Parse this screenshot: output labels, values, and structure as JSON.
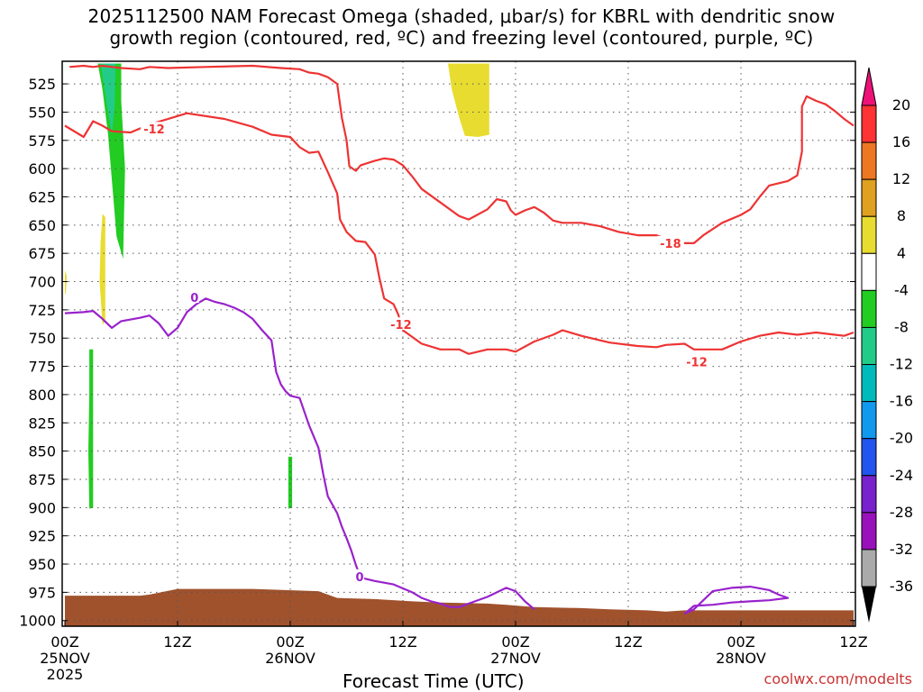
{
  "title": {
    "line1": "2025112500 NAM Forecast Omega (shaded, μbar/s) for KBRL with dendritic snow",
    "line2": "growth region (contoured, red, ºC) and freezing level (contoured, purple, ºC)"
  },
  "xaxis_title": "Forecast Time (UTC)",
  "credit": "coolwx.com/modelts",
  "chart_data": {
    "type": "area",
    "y_axis": {
      "label": "",
      "ticks": [
        525,
        550,
        575,
        600,
        625,
        650,
        675,
        700,
        725,
        750,
        775,
        800,
        825,
        850,
        875,
        900,
        925,
        950,
        975,
        1000
      ],
      "range": [
        1005,
        505
      ],
      "units": "hPa"
    },
    "x_axis": {
      "range_hours": [
        0,
        84
      ],
      "ticks": [
        {
          "hour": 0,
          "top": "00Z",
          "bottom": "25NOV",
          "bottom2": "2025"
        },
        {
          "hour": 12,
          "top": "12Z",
          "bottom": "",
          "bottom2": ""
        },
        {
          "hour": 24,
          "top": "00Z",
          "bottom": "26NOV",
          "bottom2": ""
        },
        {
          "hour": 36,
          "top": "12Z",
          "bottom": "",
          "bottom2": ""
        },
        {
          "hour": 48,
          "top": "00Z",
          "bottom": "27NOV",
          "bottom2": ""
        },
        {
          "hour": 60,
          "top": "12Z",
          "bottom": "",
          "bottom2": ""
        },
        {
          "hour": 72,
          "top": "00Z",
          "bottom": "28NOV",
          "bottom2": ""
        },
        {
          "hour": 84,
          "top": "12Z",
          "bottom": "",
          "bottom2": ""
        }
      ]
    },
    "colorbar": {
      "labels": [
        "20",
        "16",
        "12",
        "8",
        "4",
        "-4",
        "-8",
        "-12",
        "-16",
        "-20",
        "-24",
        "-28",
        "-32",
        "-36"
      ],
      "colors": [
        "#ff3333",
        "#ee7722",
        "#e0a020",
        "#e8dc30",
        "#ffffff",
        "#22cc22",
        "#22cc88",
        "#00bbbb",
        "#1199ee",
        "#2255ee",
        "#7722cc",
        "#9911bb",
        "#aaaaaa"
      ],
      "top_arrow_color": "#ee1177",
      "bottom_arrow_color": "#000000"
    },
    "contour_labels": [
      {
        "text": "-12",
        "x": 9.5,
        "y": 565,
        "color": "#ee3333"
      },
      {
        "text": "-18",
        "x": 64.5,
        "y": 666,
        "color": "#ee3333"
      },
      {
        "text": "-12",
        "x": 35.8,
        "y": 738,
        "color": "#ee3333"
      },
      {
        "text": "-12",
        "x": 67.3,
        "y": 771,
        "color": "#ee3333"
      },
      {
        "text": "0",
        "x": 13.8,
        "y": 714,
        "color": "#9922cc"
      },
      {
        "text": "0",
        "x": 31.4,
        "y": 961,
        "color": "#9922cc"
      }
    ],
    "series": [
      {
        "kind": "contour",
        "color": "#ee3333",
        "points": [
          [
            0,
            562
          ],
          [
            2,
            572
          ],
          [
            3,
            558
          ],
          [
            4,
            562
          ],
          [
            5,
            567
          ],
          [
            7,
            568
          ],
          [
            9,
            561
          ],
          [
            13,
            551
          ],
          [
            17,
            556
          ],
          [
            20,
            563
          ],
          [
            22,
            570
          ],
          [
            24,
            572
          ],
          [
            25,
            581
          ],
          [
            26,
            586
          ],
          [
            27,
            585
          ],
          [
            28,
            603
          ],
          [
            29,
            622
          ],
          [
            29.3,
            645
          ],
          [
            30,
            656
          ],
          [
            31,
            664
          ],
          [
            32,
            665
          ],
          [
            33,
            676
          ],
          [
            33.5,
            697
          ],
          [
            34,
            715
          ],
          [
            35,
            720
          ],
          [
            35.5,
            729
          ],
          [
            36,
            743
          ],
          [
            38,
            755
          ],
          [
            40,
            760
          ],
          [
            42,
            760
          ],
          [
            43,
            764
          ],
          [
            44,
            762
          ],
          [
            45,
            760
          ],
          [
            47,
            760
          ],
          [
            48,
            762
          ],
          [
            50,
            753
          ],
          [
            52,
            747
          ],
          [
            53,
            743
          ],
          [
            55,
            748
          ],
          [
            56,
            750
          ],
          [
            58,
            754
          ],
          [
            61,
            757
          ],
          [
            63,
            758
          ],
          [
            64,
            756
          ],
          [
            66,
            755
          ],
          [
            67,
            760
          ],
          [
            70,
            760
          ],
          [
            72,
            753
          ],
          [
            74,
            748
          ],
          [
            76,
            745
          ],
          [
            78,
            747
          ],
          [
            80,
            745
          ],
          [
            82,
            747
          ],
          [
            83,
            748
          ],
          [
            84,
            745
          ]
        ]
      },
      {
        "kind": "contour",
        "color": "#ee3333",
        "points": [
          [
            0.5,
            510
          ],
          [
            2,
            509
          ],
          [
            3,
            510
          ],
          [
            4,
            509
          ],
          [
            6,
            511
          ],
          [
            8,
            512
          ],
          [
            9,
            510
          ],
          [
            11,
            511
          ],
          [
            15,
            510
          ],
          [
            20,
            509
          ],
          [
            23,
            511
          ],
          [
            25,
            512
          ],
          [
            26,
            515
          ],
          [
            27,
            516
          ],
          [
            28,
            519
          ],
          [
            29,
            525
          ],
          [
            29.5,
            555
          ],
          [
            30,
            575
          ],
          [
            30.3,
            598
          ],
          [
            31,
            602
          ],
          [
            31.5,
            597
          ],
          [
            33,
            593
          ],
          [
            34,
            591
          ],
          [
            35,
            592
          ],
          [
            36,
            597
          ],
          [
            37,
            607
          ],
          [
            38,
            618
          ],
          [
            40,
            630
          ],
          [
            42,
            642
          ],
          [
            43,
            645
          ],
          [
            45,
            636
          ],
          [
            46,
            627
          ],
          [
            47,
            629
          ],
          [
            47.5,
            637
          ],
          [
            48,
            641
          ],
          [
            49,
            637
          ],
          [
            50,
            634
          ],
          [
            51,
            639
          ],
          [
            52,
            646
          ],
          [
            53,
            648
          ],
          [
            55,
            648
          ],
          [
            57,
            651
          ],
          [
            59,
            656
          ],
          [
            61,
            659
          ],
          [
            63,
            659
          ],
          [
            64,
            662
          ],
          [
            66,
            666
          ],
          [
            67,
            666
          ],
          [
            68,
            659
          ],
          [
            70,
            648
          ],
          [
            72,
            641
          ],
          [
            73,
            636
          ],
          [
            74,
            625
          ],
          [
            75,
            615
          ],
          [
            76,
            613
          ],
          [
            77,
            611
          ],
          [
            78,
            606
          ],
          [
            78.5,
            585
          ],
          [
            78.5,
            545
          ],
          [
            79,
            536
          ],
          [
            80,
            540
          ],
          [
            81,
            543
          ],
          [
            82,
            549
          ],
          [
            83,
            556
          ],
          [
            84,
            562
          ]
        ]
      },
      {
        "kind": "contour",
        "color": "#9922cc",
        "points": [
          [
            0,
            728
          ],
          [
            2,
            727
          ],
          [
            3,
            726
          ],
          [
            4,
            733
          ],
          [
            5,
            741
          ],
          [
            6,
            735
          ],
          [
            8,
            732
          ],
          [
            9,
            730
          ],
          [
            10,
            737
          ],
          [
            11,
            748
          ],
          [
            12,
            741
          ],
          [
            13,
            727
          ],
          [
            14,
            720
          ],
          [
            15,
            715
          ],
          [
            16,
            718
          ],
          [
            17,
            720
          ],
          [
            18,
            723
          ],
          [
            19,
            727
          ],
          [
            20,
            733
          ],
          [
            21,
            743
          ],
          [
            22,
            752
          ],
          [
            22.5,
            780
          ],
          [
            23,
            791
          ],
          [
            23.5,
            797
          ],
          [
            24,
            801
          ],
          [
            25,
            803
          ],
          [
            26,
            827
          ],
          [
            27,
            847
          ],
          [
            27.5,
            870
          ],
          [
            28,
            890
          ],
          [
            29,
            905
          ],
          [
            29.5,
            917
          ],
          [
            30,
            927
          ],
          [
            30.5,
            938
          ],
          [
            31,
            951
          ],
          [
            31.5,
            962
          ],
          [
            33,
            965
          ],
          [
            35,
            968
          ],
          [
            37,
            975
          ],
          [
            38,
            980
          ],
          [
            39,
            983
          ],
          [
            40,
            985
          ],
          [
            41,
            988
          ],
          [
            42,
            988
          ],
          [
            43,
            985
          ],
          [
            45,
            979
          ],
          [
            47,
            971
          ],
          [
            48,
            974
          ],
          [
            49,
            983
          ],
          [
            50,
            990
          ]
        ]
      },
      {
        "kind": "contour",
        "color": "#9922cc",
        "points": [
          [
            66,
            994
          ],
          [
            67,
            990
          ],
          [
            68,
            982
          ],
          [
            69,
            974
          ],
          [
            71,
            971
          ],
          [
            73,
            970
          ],
          [
            75,
            973
          ],
          [
            76,
            977
          ],
          [
            77,
            980
          ],
          [
            75,
            982
          ],
          [
            73,
            983
          ],
          [
            71,
            984
          ],
          [
            69,
            986
          ],
          [
            67,
            987
          ],
          [
            66,
            994
          ]
        ]
      },
      {
        "kind": "shaded",
        "value_range": "-8 to -4",
        "color": "#22cc22",
        "points": [
          [
            3.5,
            507
          ],
          [
            6,
            507
          ],
          [
            6,
            540
          ],
          [
            6.4,
            600
          ],
          [
            6.2,
            680
          ],
          [
            5.5,
            660
          ],
          [
            5,
            610
          ],
          [
            4.6,
            570
          ],
          [
            4,
            530
          ]
        ]
      },
      {
        "kind": "shaded",
        "value_range": "-12 to -8",
        "color": "#22cc88",
        "points": [
          [
            3.8,
            507
          ],
          [
            5.4,
            507
          ],
          [
            5.3,
            545
          ],
          [
            5,
            570
          ],
          [
            4.5,
            545
          ]
        ]
      },
      {
        "kind": "shaded",
        "value_range": "4 to 8",
        "color": "#e8dc30",
        "points": [
          [
            4,
            640
          ],
          [
            4.3,
            643
          ],
          [
            4.3,
            735
          ],
          [
            4,
            738
          ],
          [
            3.7,
            700
          ],
          [
            3.8,
            665
          ]
        ]
      },
      {
        "kind": "shaded",
        "value_range": "4 to 8",
        "color": "#e8dc30",
        "points": [
          [
            0,
            690
          ],
          [
            0.2,
            695
          ],
          [
            0.1,
            710
          ],
          [
            0,
            712
          ]
        ]
      },
      {
        "kind": "shaded",
        "value_range": "4 to 8",
        "color": "#e8dc30",
        "points": [
          [
            40.8,
            507
          ],
          [
            45.2,
            507
          ],
          [
            45.2,
            570
          ],
          [
            44,
            572
          ],
          [
            42.6,
            571
          ],
          [
            42,
            555
          ],
          [
            41.2,
            530
          ]
        ]
      },
      {
        "kind": "shaded",
        "value_range": "-8 to -4",
        "color": "#22cc22",
        "points": [
          [
            2.6,
            760
          ],
          [
            3,
            760
          ],
          [
            3,
            900
          ],
          [
            2.6,
            901
          ],
          [
            2.5,
            850
          ],
          [
            2.6,
            800
          ]
        ]
      },
      {
        "kind": "shaded",
        "value_range": "-8 to -4",
        "color": "#22cc22",
        "points": [
          [
            23.8,
            855
          ],
          [
            24.2,
            855
          ],
          [
            24.2,
            900
          ],
          [
            23.8,
            901
          ]
        ]
      },
      {
        "kind": "terrain",
        "color": "#a0522d",
        "points": [
          [
            0,
            978
          ],
          [
            6,
            978
          ],
          [
            8,
            978
          ],
          [
            9,
            977
          ],
          [
            12,
            972
          ],
          [
            20,
            972
          ],
          [
            27,
            974
          ],
          [
            29,
            980
          ],
          [
            33,
            981
          ],
          [
            37,
            983
          ],
          [
            40,
            984
          ],
          [
            45,
            985
          ],
          [
            47,
            986
          ],
          [
            50,
            988
          ],
          [
            55,
            989
          ],
          [
            58,
            990
          ],
          [
            62,
            991
          ],
          [
            64,
            992
          ],
          [
            66,
            991
          ],
          [
            69,
            991
          ],
          [
            76,
            991
          ],
          [
            84,
            991
          ]
        ]
      }
    ]
  }
}
